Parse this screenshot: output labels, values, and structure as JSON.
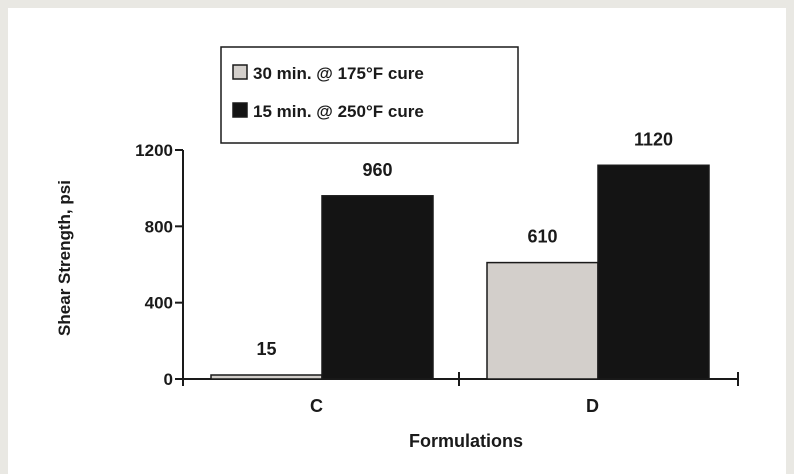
{
  "chart_data": {
    "type": "bar",
    "categories": [
      "C",
      "D"
    ],
    "series": [
      {
        "name": "30 min. @ 175°F cure",
        "values": [
          15,
          610
        ],
        "color": "#d3cfcb"
      },
      {
        "name": "15 min. @ 250°F cure",
        "values": [
          960,
          1120
        ],
        "color": "#141414"
      }
    ],
    "data_labels": [
      [
        "15",
        "610"
      ],
      [
        "960",
        "1120"
      ]
    ],
    "xlabel": "Formulations",
    "ylabel": "Shear Strength, psi",
    "ylim": [
      0,
      1200
    ],
    "yticks": [
      "0",
      "400",
      "800",
      "1200"
    ],
    "legend_position": "top-left",
    "grid": false
  }
}
